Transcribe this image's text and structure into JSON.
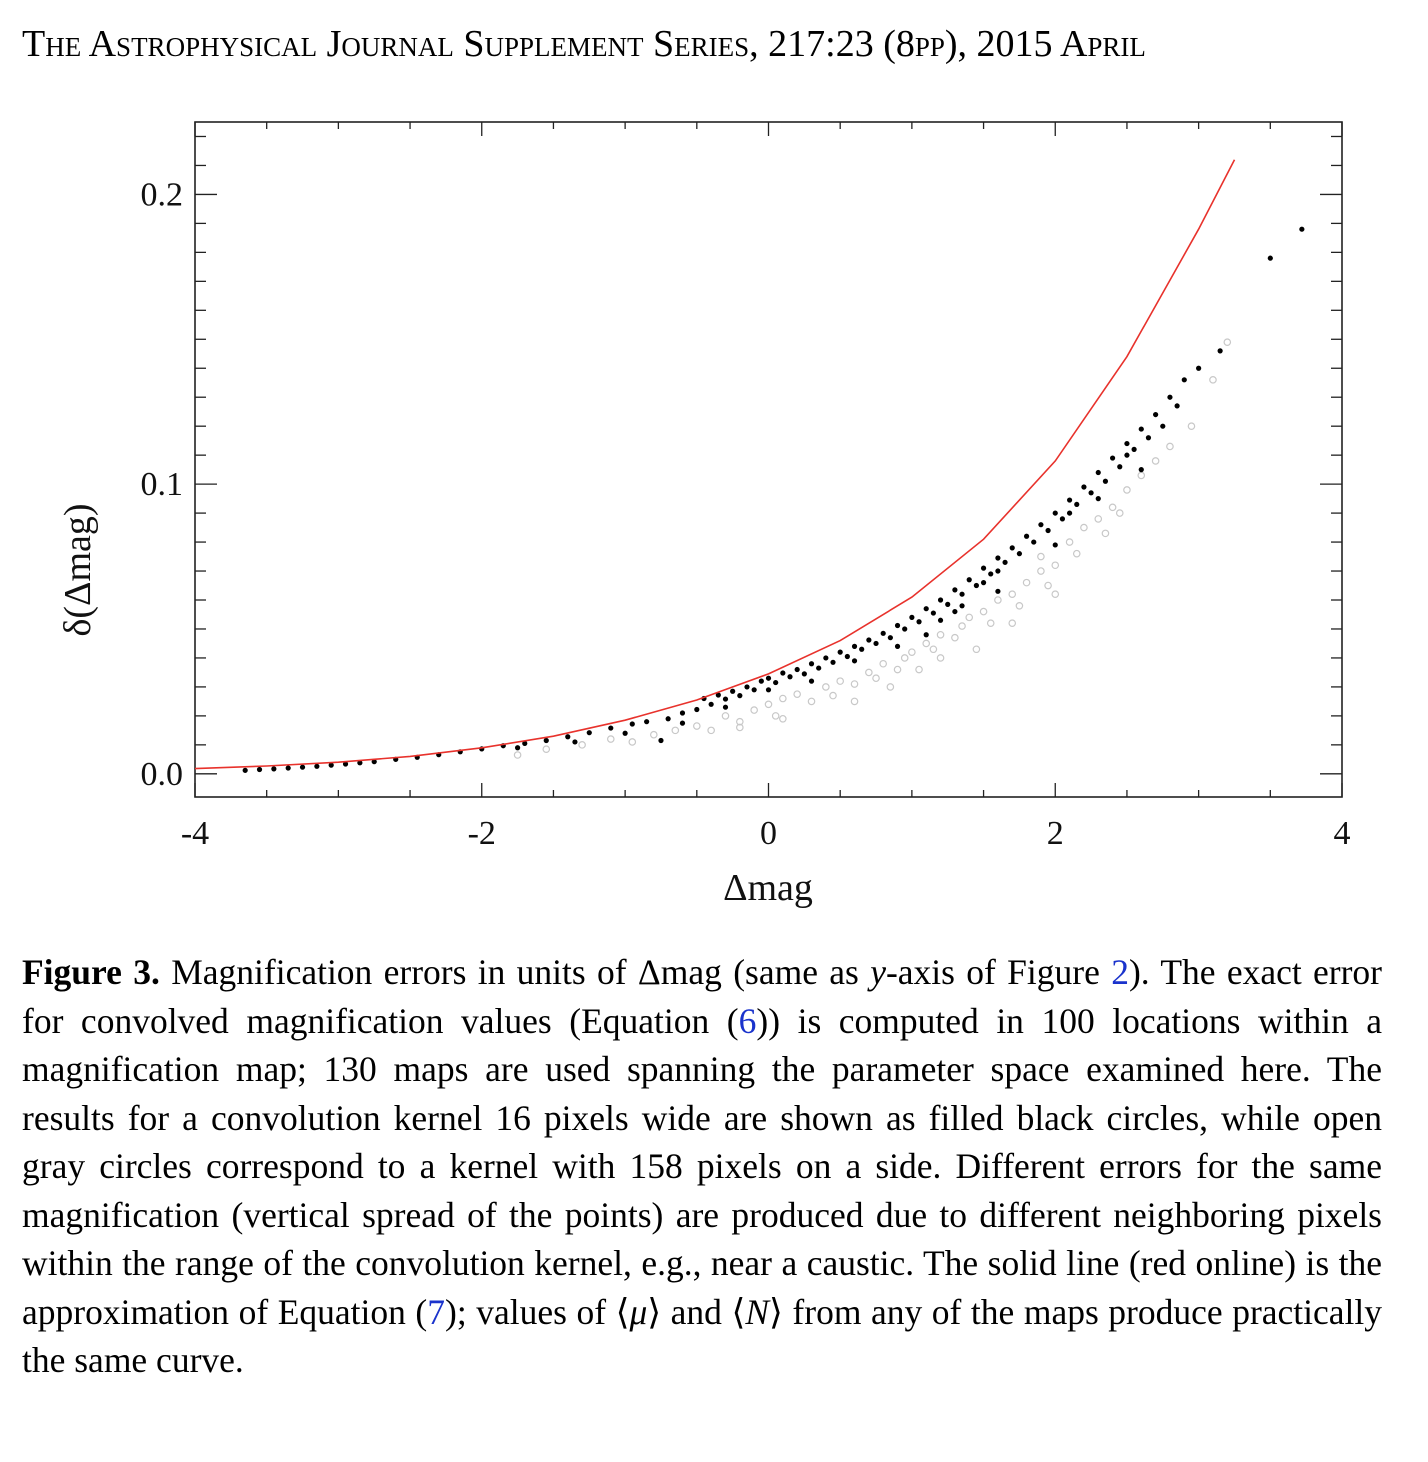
{
  "header": {
    "journal": "The Astrophysical Journal Supplement Series, 217:23 (8pp), 2015 April"
  },
  "chart_data": {
    "type": "scatter",
    "xlabel": "Δmag",
    "ylabel": "δ(Δmag)",
    "xlim": [
      -4,
      4
    ],
    "ylim": [
      -0.008,
      0.225
    ],
    "x_ticks": [
      "-4",
      "-2",
      "0",
      "2",
      "4"
    ],
    "y_ticks": [
      "0.0",
      "0.1",
      "0.2"
    ],
    "grid": false,
    "series": [
      {
        "color": "#000000",
        "marker": "filled-circle",
        "points": [
          [
            -3.65,
            0.0012
          ],
          [
            -3.55,
            0.0015
          ],
          [
            -3.45,
            0.0017
          ],
          [
            -3.35,
            0.002
          ],
          [
            -3.25,
            0.0023
          ],
          [
            -3.15,
            0.0026
          ],
          [
            -3.05,
            0.003
          ],
          [
            -2.95,
            0.0034
          ],
          [
            -2.85,
            0.0038
          ],
          [
            -2.75,
            0.0042
          ],
          [
            -2.6,
            0.005
          ],
          [
            -2.45,
            0.0057
          ],
          [
            -2.3,
            0.0066
          ],
          [
            -2.15,
            0.0076
          ],
          [
            -2.0,
            0.0086
          ],
          [
            -1.85,
            0.0097
          ],
          [
            -1.75,
            0.009
          ],
          [
            -1.7,
            0.0105
          ],
          [
            -1.55,
            0.0115
          ],
          [
            -1.4,
            0.0128
          ],
          [
            -1.35,
            0.011
          ],
          [
            -1.25,
            0.0142
          ],
          [
            -1.1,
            0.0158
          ],
          [
            -0.95,
            0.0172
          ],
          [
            -0.85,
            0.018
          ],
          [
            -0.75,
            0.0115
          ],
          [
            -0.7,
            0.019
          ],
          [
            -0.6,
            0.021
          ],
          [
            -0.5,
            0.0222
          ],
          [
            -0.45,
            0.026
          ],
          [
            -0.4,
            0.024
          ],
          [
            -0.35,
            0.0272
          ],
          [
            -0.3,
            0.0258
          ],
          [
            -0.25,
            0.0285
          ],
          [
            -0.2,
            0.027
          ],
          [
            -0.15,
            0.03
          ],
          [
            -0.1,
            0.029
          ],
          [
            -0.05,
            0.032
          ],
          [
            0.0,
            0.033
          ],
          [
            0.05,
            0.0315
          ],
          [
            0.1,
            0.0348
          ],
          [
            0.15,
            0.0335
          ],
          [
            0.2,
            0.036
          ],
          [
            0.25,
            0.0345
          ],
          [
            0.3,
            0.038
          ],
          [
            0.35,
            0.0365
          ],
          [
            0.4,
            0.04
          ],
          [
            0.45,
            0.0385
          ],
          [
            0.5,
            0.042
          ],
          [
            0.55,
            0.0405
          ],
          [
            0.6,
            0.044
          ],
          [
            0.65,
            0.043
          ],
          [
            0.7,
            0.0462
          ],
          [
            0.75,
            0.045
          ],
          [
            0.8,
            0.0485
          ],
          [
            0.85,
            0.047
          ],
          [
            0.9,
            0.0512
          ],
          [
            0.95,
            0.05
          ],
          [
            1.0,
            0.054
          ],
          [
            1.05,
            0.0525
          ],
          [
            1.1,
            0.057
          ],
          [
            1.15,
            0.0555
          ],
          [
            1.2,
            0.06
          ],
          [
            1.2,
            0.053
          ],
          [
            1.25,
            0.0585
          ],
          [
            1.3,
            0.0635
          ],
          [
            1.35,
            0.062
          ],
          [
            1.35,
            0.058
          ],
          [
            1.4,
            0.067
          ],
          [
            1.45,
            0.065
          ],
          [
            1.5,
            0.071
          ],
          [
            1.5,
            0.066
          ],
          [
            1.55,
            0.069
          ],
          [
            1.6,
            0.0745
          ],
          [
            1.6,
            0.07
          ],
          [
            1.65,
            0.073
          ],
          [
            1.7,
            0.078
          ],
          [
            1.75,
            0.076
          ],
          [
            1.8,
            0.082
          ],
          [
            1.85,
            0.08
          ],
          [
            1.9,
            0.086
          ],
          [
            1.95,
            0.084
          ],
          [
            2.0,
            0.09
          ],
          [
            2.05,
            0.088
          ],
          [
            2.1,
            0.0945
          ],
          [
            2.1,
            0.09
          ],
          [
            2.15,
            0.093
          ],
          [
            2.2,
            0.099
          ],
          [
            2.25,
            0.097
          ],
          [
            2.3,
            0.104
          ],
          [
            2.35,
            0.101
          ],
          [
            2.4,
            0.109
          ],
          [
            2.45,
            0.106
          ],
          [
            2.5,
            0.114
          ],
          [
            2.5,
            0.11
          ],
          [
            2.55,
            0.112
          ],
          [
            2.6,
            0.119
          ],
          [
            2.65,
            0.116
          ],
          [
            2.7,
            0.124
          ],
          [
            2.75,
            0.12
          ],
          [
            2.8,
            0.13
          ],
          [
            2.85,
            0.127
          ],
          [
            2.9,
            0.136
          ],
          [
            3.0,
            0.14
          ],
          [
            3.15,
            0.146
          ],
          [
            3.5,
            0.178
          ],
          [
            3.72,
            0.188
          ],
          [
            2.6,
            0.105
          ],
          [
            2.3,
            0.095
          ],
          [
            2.0,
            0.079
          ],
          [
            1.6,
            0.063
          ],
          [
            1.3,
            0.056
          ],
          [
            1.1,
            0.048
          ],
          [
            0.9,
            0.044
          ],
          [
            0.6,
            0.039
          ],
          [
            0.3,
            0.032
          ],
          [
            0.0,
            0.029
          ],
          [
            -0.3,
            0.023
          ],
          [
            -0.6,
            0.0175
          ],
          [
            -1.0,
            0.014
          ]
        ]
      },
      {
        "color": "#c8c8c8",
        "marker": "open-circle",
        "points": [
          [
            -1.75,
            0.0065
          ],
          [
            -1.55,
            0.0085
          ],
          [
            -1.3,
            0.01
          ],
          [
            -1.1,
            0.012
          ],
          [
            -0.95,
            0.011
          ],
          [
            -0.8,
            0.0135
          ],
          [
            -0.65,
            0.015
          ],
          [
            -0.5,
            0.0165
          ],
          [
            -0.4,
            0.015
          ],
          [
            -0.3,
            0.02
          ],
          [
            -0.2,
            0.018
          ],
          [
            -0.1,
            0.022
          ],
          [
            0.0,
            0.024
          ],
          [
            0.05,
            0.02
          ],
          [
            0.1,
            0.026
          ],
          [
            0.2,
            0.0275
          ],
          [
            0.3,
            0.025
          ],
          [
            0.4,
            0.03
          ],
          [
            0.45,
            0.027
          ],
          [
            0.5,
            0.032
          ],
          [
            0.6,
            0.031
          ],
          [
            0.7,
            0.035
          ],
          [
            0.75,
            0.033
          ],
          [
            0.8,
            0.038
          ],
          [
            0.9,
            0.036
          ],
          [
            0.95,
            0.04
          ],
          [
            1.0,
            0.042
          ],
          [
            1.1,
            0.045
          ],
          [
            1.15,
            0.043
          ],
          [
            1.2,
            0.048
          ],
          [
            1.3,
            0.047
          ],
          [
            1.35,
            0.051
          ],
          [
            1.4,
            0.054
          ],
          [
            1.45,
            0.043
          ],
          [
            1.5,
            0.056
          ],
          [
            1.55,
            0.052
          ],
          [
            1.6,
            0.06
          ],
          [
            1.7,
            0.062
          ],
          [
            1.75,
            0.058
          ],
          [
            1.8,
            0.066
          ],
          [
            1.9,
            0.07
          ],
          [
            1.95,
            0.065
          ],
          [
            2.0,
            0.072
          ],
          [
            2.1,
            0.08
          ],
          [
            2.15,
            0.076
          ],
          [
            2.2,
            0.085
          ],
          [
            2.3,
            0.088
          ],
          [
            2.35,
            0.083
          ],
          [
            2.4,
            0.092
          ],
          [
            2.5,
            0.098
          ],
          [
            2.6,
            0.103
          ],
          [
            2.7,
            0.108
          ],
          [
            2.8,
            0.113
          ],
          [
            2.95,
            0.12
          ],
          [
            3.1,
            0.136
          ],
          [
            3.2,
            0.149
          ],
          [
            2.0,
            0.062
          ],
          [
            1.7,
            0.052
          ],
          [
            1.2,
            0.04
          ],
          [
            0.6,
            0.025
          ],
          [
            0.1,
            0.019
          ],
          [
            -0.2,
            0.016
          ],
          [
            1.9,
            0.075
          ],
          [
            2.45,
            0.09
          ],
          [
            0.85,
            0.03
          ],
          [
            1.05,
            0.036
          ]
        ]
      },
      {
        "color": "#e8322c",
        "type": "line",
        "points": [
          [
            -4.0,
            0.0018
          ],
          [
            -3.5,
            0.0027
          ],
          [
            -3.0,
            0.004
          ],
          [
            -2.5,
            0.006
          ],
          [
            -2.0,
            0.009
          ],
          [
            -1.5,
            0.013
          ],
          [
            -1.0,
            0.0185
          ],
          [
            -0.5,
            0.0255
          ],
          [
            0.0,
            0.0345
          ],
          [
            0.5,
            0.046
          ],
          [
            1.0,
            0.061
          ],
          [
            1.5,
            0.081
          ],
          [
            2.0,
            0.108
          ],
          [
            2.5,
            0.144
          ],
          [
            3.0,
            0.188
          ],
          [
            3.25,
            0.212
          ],
          [
            3.45,
            0.226
          ]
        ]
      }
    ]
  },
  "caption": {
    "label": "Figure 3.",
    "part1": " Magnification errors in units of Δmag (same as ",
    "italic_y": "y",
    "part2": "-axis of Figure ",
    "ref_fig": "2",
    "part3": "). The exact error for convolved magnification values (Equation (",
    "ref_eq6": "6",
    "part4": ")) is computed in 100 locations within a magnification map; 130 maps are used spanning the parameter space examined here. The results for a convolution kernel 16 pixels wide are shown as filled black circles, while open gray circles correspond to a kernel with 158 pixels on a side. Different errors for the same magnification (vertical spread of the points) are produced due to different neighboring pixels within the range of the convolution kernel, e.g., near a caustic. The solid line (red online) is the approximation of Equation (",
    "ref_eq7": "7",
    "part5": "); values of ⟨",
    "mu": "μ",
    "part6": "⟩ and ⟨",
    "n": "N",
    "part7": "⟩ from any of the maps produce practically the same curve."
  }
}
